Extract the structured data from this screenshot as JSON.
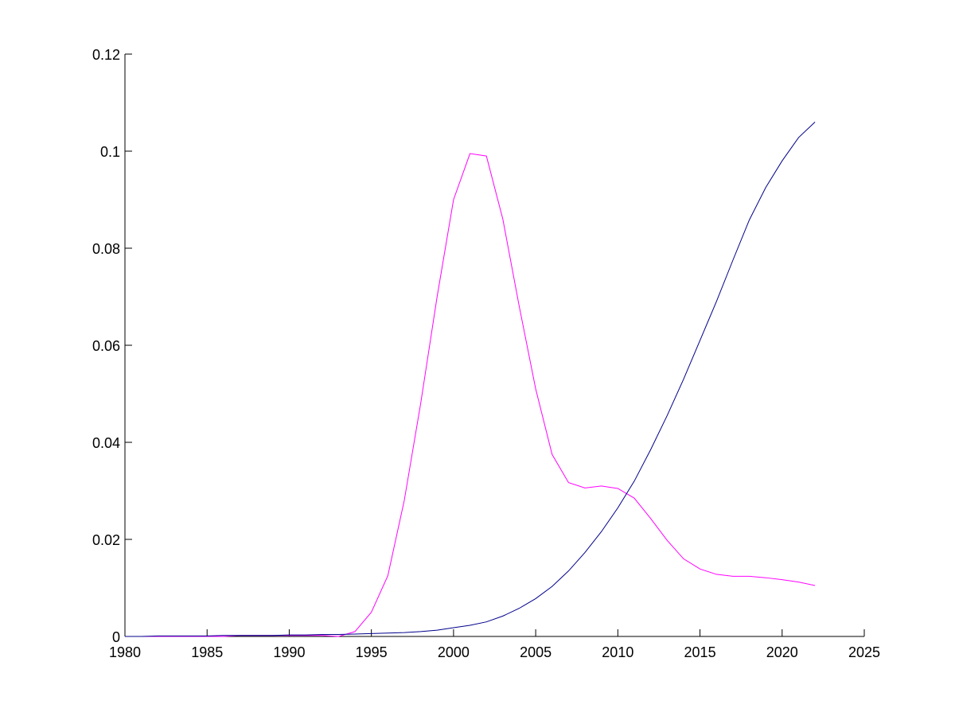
{
  "chart_data": {
    "type": "line",
    "x": [
      1980,
      1981,
      1982,
      1983,
      1984,
      1985,
      1986,
      1987,
      1988,
      1989,
      1990,
      1991,
      1992,
      1993,
      1994,
      1995,
      1996,
      1997,
      1998,
      1999,
      2000,
      2001,
      2002,
      2003,
      2004,
      2005,
      2006,
      2007,
      2008,
      2009,
      2010,
      2011,
      2012,
      2013,
      2014,
      2015,
      2016,
      2017,
      2018,
      2019,
      2020,
      2021,
      2022
    ],
    "series": [
      {
        "color": "#ff00ff",
        "values": [
          0,
          0,
          0,
          0,
          0,
          0,
          0,
          0.0002,
          0.0002,
          0.0002,
          0.0002,
          0.0002,
          0.0002,
          0,
          0.001,
          0.005,
          0.0125,
          0.028,
          0.048,
          0.07,
          0.09,
          0.0995,
          0.099,
          0.086,
          0.068,
          0.051,
          0.0375,
          0.0317,
          0.0306,
          0.031,
          0.0305,
          0.0285,
          0.0243,
          0.0198,
          0.016,
          0.0139,
          0.0128,
          0.0124,
          0.0124,
          0.0121,
          0.0117,
          0.0112,
          0.0105
        ]
      },
      {
        "color": "#00008b",
        "values": [
          0,
          0,
          0.0001,
          0.0001,
          0.0001,
          0.0001,
          0.0002,
          0.0002,
          0.0002,
          0.0002,
          0.0003,
          0.0003,
          0.0004,
          0.0004,
          0.0005,
          0.0006,
          0.0007,
          0.0008,
          0.001,
          0.0013,
          0.0018,
          0.0023,
          0.003,
          0.0042,
          0.0058,
          0.0078,
          0.0103,
          0.0135,
          0.0173,
          0.0216,
          0.0265,
          0.032,
          0.0385,
          0.0455,
          0.053,
          0.061,
          0.069,
          0.0775,
          0.0858,
          0.0925,
          0.098,
          0.1028,
          0.106
        ]
      }
    ],
    "xlim": [
      1980,
      2025
    ],
    "xticks": [
      1980,
      1985,
      1990,
      1995,
      2000,
      2005,
      2010,
      2015,
      2020,
      2025
    ],
    "ylim": [
      0,
      0.12
    ],
    "yticks": [
      0,
      0.02,
      0.04,
      0.06,
      0.08,
      0.1,
      0.12
    ]
  }
}
